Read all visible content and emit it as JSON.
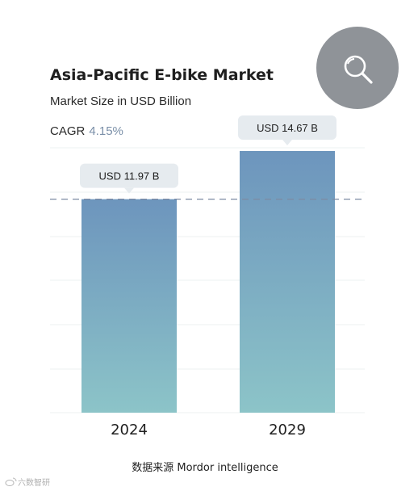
{
  "colors": {
    "bar_top": "#6d95bd",
    "bar_bottom": "#8cc4c8",
    "bubble": "#e6ebef",
    "grid": "#eef0f2",
    "reference_line": "#7c8aa3",
    "search_button": "#8f9398",
    "cagr_value": "#7a8fa8"
  },
  "search_button": {
    "icon": "search-icon"
  },
  "chart_data": {
    "type": "bar",
    "title": "Asia-Pacific E-bike Market",
    "subtitle": "Market Size in USD Billion",
    "cagr_label": "CAGR",
    "cagr_value": "4.15%",
    "categories": [
      "2024",
      "2029"
    ],
    "values": [
      11.97,
      14.67
    ],
    "value_labels": [
      "USD 11.97 B",
      "USD 14.67 B"
    ],
    "ylim": [
      0,
      14.67
    ],
    "grid": true,
    "reference_line": {
      "value": 11.97,
      "style": "dashed"
    }
  },
  "footer": {
    "source_text": "数据来源  Mordor intelligence",
    "watermark": "六数智研"
  }
}
